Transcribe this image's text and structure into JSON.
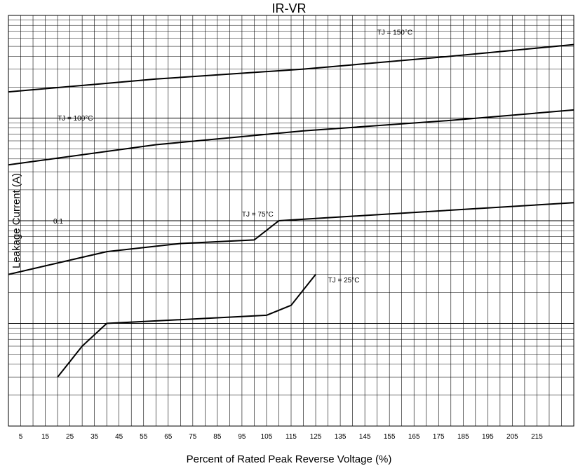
{
  "chart_data": {
    "type": "line",
    "title": "IR-VR",
    "xlabel": "Percent of Rated Peak Reverse Voltage (%)",
    "ylabel": "Leakage Current (A)",
    "x_ticks": [
      5,
      15,
      25,
      35,
      45,
      55,
      65,
      75,
      85,
      95,
      105,
      115,
      125,
      135,
      145,
      155,
      165,
      175,
      185,
      195,
      205,
      215
    ],
    "xlim": [
      0,
      230
    ],
    "ylim": [
      0.001,
      10
    ],
    "y_scale": "log",
    "y_tick_labels": [
      {
        "value": 0.1,
        "text": "0.1"
      }
    ],
    "grid": true,
    "series": [
      {
        "name": "TJ = 150°C",
        "label_at": [
          150,
          6.5
        ],
        "x": [
          0,
          60,
          120,
          180,
          230
        ],
        "y": [
          1.8,
          2.4,
          3.0,
          4.0,
          5.2
        ]
      },
      {
        "name": "TJ = 100°C",
        "label_at": [
          20,
          0.95
        ],
        "x": [
          0,
          60,
          120,
          180,
          230
        ],
        "y": [
          0.35,
          0.55,
          0.75,
          0.95,
          1.2
        ]
      },
      {
        "name": "TJ = 75°C",
        "label_at": [
          95,
          0.11
        ],
        "x": [
          0,
          40,
          70,
          100,
          110,
          230
        ],
        "y": [
          0.03,
          0.05,
          0.06,
          0.065,
          0.1,
          0.15
        ]
      },
      {
        "name": "TJ = 25°C",
        "label_at": [
          130,
          0.025
        ],
        "x": [
          20,
          30,
          40,
          105,
          115,
          125
        ],
        "y": [
          0.003,
          0.006,
          0.01,
          0.012,
          0.015,
          0.03
        ]
      }
    ]
  }
}
